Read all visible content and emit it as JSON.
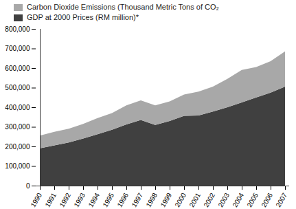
{
  "chart_data": {
    "type": "area",
    "stacked": true,
    "legend": "top",
    "categories": [
      "1990",
      "1991",
      "1992",
      "1993",
      "1994",
      "1995",
      "1996",
      "1997",
      "1998",
      "1999",
      "2000",
      "2001",
      "2002",
      "2003",
      "2004",
      "2005",
      "2006",
      "2007"
    ],
    "series": [
      {
        "name": "GDP at 2000 Prices (RM million)*",
        "color": "#404040",
        "values": [
          190000,
          205000,
          220000,
          240000,
          262000,
          285000,
          312000,
          335000,
          310000,
          330000,
          356000,
          358000,
          378000,
          400000,
          425000,
          450000,
          475000,
          505000
        ]
      },
      {
        "name": "Carbon Dioxide Emissions (Thousand Metric Tons of CO₂",
        "color": "#a8a8a8",
        "values": [
          65000,
          70000,
          70000,
          75000,
          83000,
          85000,
          98000,
          100000,
          100000,
          100000,
          109000,
          122000,
          127000,
          145000,
          165000,
          155000,
          160000,
          180000
        ]
      }
    ],
    "ylim": [
      0,
      800000
    ],
    "yticks": [
      0,
      {
        "value": 100000,
        "label": "100,000"
      },
      {
        "value": 200000,
        "label": "200,000"
      },
      {
        "value": 300000,
        "label": "300,000"
      },
      {
        "value": 400000,
        "label": "400,000"
      },
      {
        "value": 500000,
        "label": "500,000"
      },
      {
        "value": 600000,
        "label": "600,000"
      },
      {
        "value": 700000,
        "label": "700,000"
      },
      {
        "value": 800000,
        "label": "800,000"
      }
    ]
  }
}
